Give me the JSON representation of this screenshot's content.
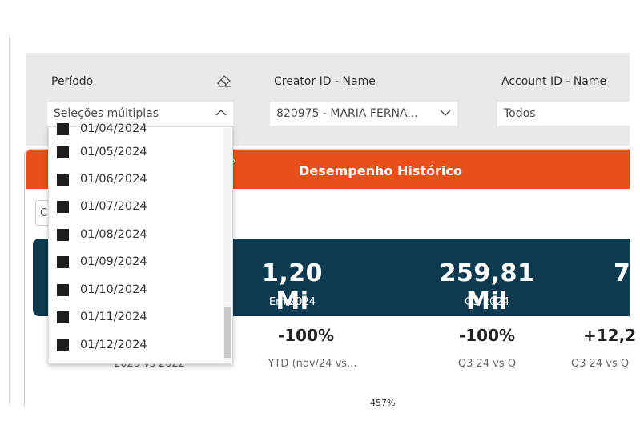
{
  "filters": {
    "periodo": {
      "label": "Período",
      "value": "Seleções múltiplas"
    },
    "creator": {
      "label": "Creator ID - Name",
      "value": "820975 - MARIA FERNA..."
    },
    "account": {
      "label": "Account ID - Name",
      "value": "Todos"
    }
  },
  "dropdown": {
    "partial_item": "01/04/2024",
    "items": [
      "01/05/2024",
      "01/06/2024",
      "01/07/2024",
      "01/08/2024",
      "01/09/2024",
      "01/10/2024",
      "01/11/2024",
      "01/12/2024"
    ]
  },
  "section": {
    "title": "Desempenho Histórico",
    "tab_letter": "C"
  },
  "kpis": [
    {
      "value": "1,20 Mi",
      "sub": "Em 2024"
    },
    {
      "value": "259,81 Mil",
      "sub": "Q3 2024"
    },
    {
      "value": "7,",
      "sub": ""
    }
  ],
  "deltas": [
    {
      "value": "",
      "sub": "2023 vs 2022"
    },
    {
      "value": "-100%",
      "sub": "YTD (nov/24 vs..."
    },
    {
      "value": "-100%",
      "sub": "Q3 24 vs Q"
    },
    {
      "value": "+12,2",
      "sub": "Q3 24 vs Q"
    }
  ],
  "bottom": {
    "label": "457%"
  },
  "colors": {
    "accent": "#e84f1b",
    "kpi_band": "#0e3a4f",
    "filter_bg": "#e9e9e9"
  }
}
